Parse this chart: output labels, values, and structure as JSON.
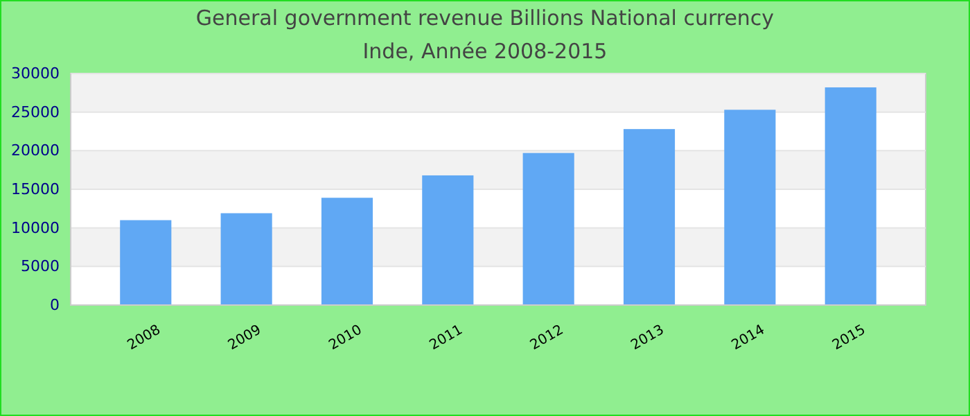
{
  "chart_data": {
    "type": "bar",
    "title": "General government revenue Billions National currency",
    "subtitle": "Inde, Année 2008-2015",
    "categories": [
      "2008",
      "2009",
      "2010",
      "2011",
      "2012",
      "2013",
      "2014",
      "2015"
    ],
    "values": [
      11000,
      11900,
      13900,
      16800,
      19700,
      22800,
      25300,
      28200
    ],
    "color": "#60a8f4",
    "ylim": [
      0,
      30000
    ],
    "yticks": [
      0,
      5000,
      10000,
      15000,
      20000,
      25000,
      30000
    ],
    "grid": "y"
  }
}
